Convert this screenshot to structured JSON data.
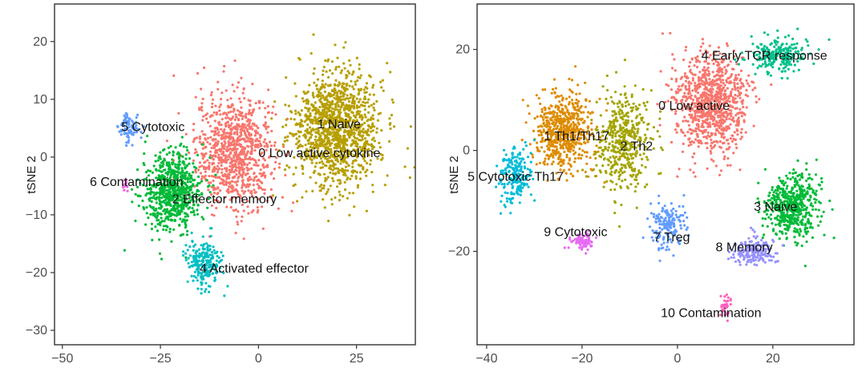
{
  "chart_data": [
    {
      "type": "scatter",
      "title": "",
      "xlabel": "",
      "ylabel": "tSNE 2",
      "xlim": [
        -52,
        40
      ],
      "ylim": [
        -32.5,
        26.5
      ],
      "xticks": [
        -50,
        -25,
        0,
        25
      ],
      "xtick_labels": [
        "−50",
        "−25",
        "0",
        "25"
      ],
      "yticks": [
        20,
        10,
        0,
        -10,
        -20,
        -30
      ],
      "ytick_labels": [
        "20",
        "10",
        "0",
        "−10",
        "−20",
        "−30"
      ],
      "grid": false,
      "legend": "none",
      "series": [
        {
          "name": "0 Low active cytokine",
          "color": "#F8766D",
          "label_at": [
            0,
            0
          ],
          "center": [
            -6,
            1
          ],
          "spread": [
            9,
            9
          ],
          "n": 900
        },
        {
          "name": "1 Naive",
          "color": "#B79F00",
          "label_at": [
            15,
            5
          ],
          "center": [
            20,
            5
          ],
          "spread": [
            10,
            9
          ],
          "n": 1250
        },
        {
          "name": "2 Effector memory",
          "color": "#00BA38",
          "label_at": [
            -22,
            -8
          ],
          "center": [
            -22,
            -6
          ],
          "spread": [
            7,
            6
          ],
          "n": 700
        },
        {
          "name": "4 Activated effector",
          "color": "#00BFC4",
          "label_at": [
            -15,
            -20
          ],
          "center": [
            -14,
            -18
          ],
          "spread": [
            4,
            3.5
          ],
          "n": 220
        },
        {
          "name": "5 Cytotoxic",
          "color": "#619CFF",
          "label_at": [
            -35,
            4.5
          ],
          "center": [
            -33,
            5
          ],
          "spread": [
            2.5,
            2.2
          ],
          "n": 90
        },
        {
          "name": "6 Contamination",
          "color": "#F564E3",
          "label_at": [
            -43,
            -5
          ],
          "center": [
            -34,
            -5
          ],
          "spread": [
            1,
            1.2
          ],
          "n": 12
        }
      ]
    },
    {
      "type": "scatter",
      "title": "",
      "xlabel": "",
      "ylabel": "tSNE 2",
      "xlim": [
        -42,
        37
      ],
      "ylim": [
        -38.5,
        29
      ],
      "xticks": [
        -40,
        -20,
        0,
        20
      ],
      "xtick_labels": [
        "−40",
        "−20",
        "0",
        "20"
      ],
      "yticks": [
        20,
        0,
        -20
      ],
      "ytick_labels": [
        "20",
        "0",
        "−20"
      ],
      "grid": false,
      "legend": "none",
      "series": [
        {
          "name": "0 Low active",
          "color": "#F8766D",
          "label_at": [
            -4,
            8
          ],
          "center": [
            7,
            9
          ],
          "spread": [
            7,
            9
          ],
          "n": 900
        },
        {
          "name": "1 Th1/Th17",
          "color": "#DE8C00",
          "label_at": [
            -28,
            2
          ],
          "center": [
            -24,
            4
          ],
          "spread": [
            6,
            7
          ],
          "n": 600
        },
        {
          "name": "2 Th2",
          "color": "#A3A500",
          "label_at": [
            -12,
            0
          ],
          "center": [
            -11,
            2
          ],
          "spread": [
            5,
            9
          ],
          "n": 450
        },
        {
          "name": "3 Naive",
          "color": "#00BA38",
          "label_at": [
            16,
            -12
          ],
          "center": [
            24,
            -11
          ],
          "spread": [
            5,
            6
          ],
          "n": 500
        },
        {
          "name": "4 Early TCR response",
          "color": "#00C08B",
          "label_at": [
            5,
            18
          ],
          "center": [
            21,
            19
          ],
          "spread": [
            6,
            3
          ],
          "n": 230
        },
        {
          "name": "5 Cytotoxic Th17",
          "color": "#00BCD8",
          "label_at": [
            -44,
            -6
          ],
          "center": [
            -34,
            -5
          ],
          "spread": [
            3,
            5
          ],
          "n": 200
        },
        {
          "name": "7 Treg",
          "color": "#619CFF",
          "label_at": [
            -5,
            -18
          ],
          "center": [
            -2,
            -15
          ],
          "spread": [
            3,
            4
          ],
          "n": 170
        },
        {
          "name": "8 Memory",
          "color": "#9590FF",
          "label_at": [
            8,
            -20
          ],
          "center": [
            16,
            -20
          ],
          "spread": [
            4,
            2.5
          ],
          "n": 160
        },
        {
          "name": "9 Cytotoxic",
          "color": "#E76BF3",
          "label_at": [
            -28,
            -17
          ],
          "center": [
            -20,
            -18
          ],
          "spread": [
            2,
            1.5
          ],
          "n": 80
        },
        {
          "name": "10 Contamination",
          "color": "#FF62BC",
          "label_at": [
            -3.5,
            -33
          ],
          "center": [
            10,
            -31
          ],
          "spread": [
            1.2,
            2.5
          ],
          "n": 35
        }
      ]
    }
  ]
}
